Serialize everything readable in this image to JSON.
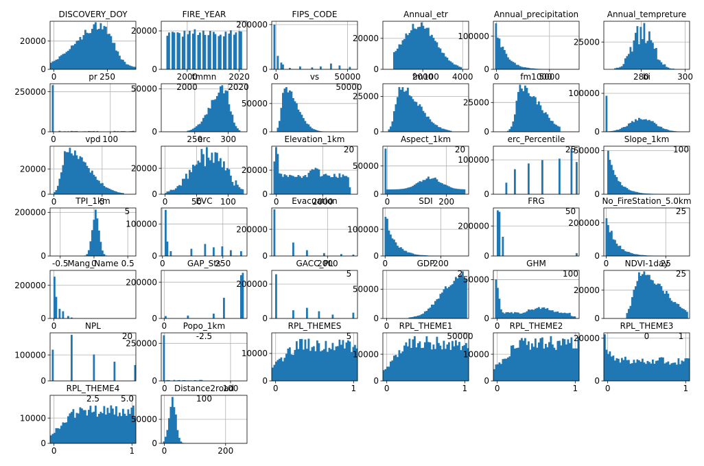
{
  "figure": {
    "background": "#ffffff",
    "bar_color": "#1f77b4",
    "grid_color": "#b0b0b0"
  },
  "chart_data": [
    {
      "type": "bar",
      "title": "DISCOVERY_DOY",
      "xlim": [
        -18,
        383
      ],
      "ylim": [
        0,
        34000
      ],
      "xticks": [
        0,
        250
      ],
      "yticks": [
        0,
        20000
      ],
      "shape": "skew-left",
      "peak": [
        0.6,
        0.13
      ],
      "range": [
        0.0,
        1.0
      ],
      "low": 0.04
    },
    {
      "type": "bar",
      "title": "FIRE_YEAR",
      "xlim": [
        1990,
        2023
      ],
      "ylim": [
        0,
        25000
      ],
      "xticks": [
        2000,
        2020
      ],
      "yticks": [
        0,
        20000
      ],
      "shape": "spiky-uniform",
      "range": [
        0.06,
        0.94
      ],
      "level": 0.8
    },
    {
      "type": "bar",
      "title": "FIPS_CODE",
      "xlim": [
        -3000,
        57000
      ],
      "ylim": [
        0,
        215000
      ],
      "xticks": [
        0,
        50000
      ],
      "yticks": [
        0,
        200000
      ],
      "shape": "sparse",
      "range": [
        0.03,
        0.95
      ],
      "spikes": [
        [
          0.03,
          0.93
        ],
        [
          0.07,
          0.28
        ],
        [
          0.1,
          0.14
        ],
        [
          0.13,
          0.1
        ],
        [
          0.2,
          0.03
        ],
        [
          0.33,
          0.06
        ],
        [
          0.47,
          0.04
        ],
        [
          0.58,
          0.06
        ],
        [
          0.68,
          0.12
        ],
        [
          0.78,
          0.08
        ],
        [
          0.9,
          0.05
        ]
      ]
    },
    {
      "type": "bar",
      "title": "Annual_etr",
      "xlim": [
        0,
        4300
      ],
      "ylim": [
        0,
        31000
      ],
      "xticks": [
        2000,
        4000
      ],
      "yticks": [
        0,
        20000
      ],
      "shape": "bell",
      "peak": [
        0.42,
        0.2
      ],
      "range": [
        0.13,
        0.92
      ]
    },
    {
      "type": "bar",
      "title": "Annual_precipitation",
      "xlim": [
        -300,
        7800
      ],
      "ylim": [
        0,
        145000
      ],
      "xticks": [
        0,
        5000
      ],
      "yticks": [
        0,
        100000
      ],
      "shape": "decay",
      "range": [
        0.03,
        0.95
      ],
      "first": 0.9
    },
    {
      "type": "bar",
      "title": "Annual_tempreture",
      "xlim": [
        263,
        302
      ],
      "ylim": [
        0,
        44000
      ],
      "xticks": [
        280,
        300
      ],
      "yticks": [
        25000
      ],
      "shape": "spiky-bell",
      "peak": [
        0.46,
        0.12
      ],
      "range": [
        0.12,
        0.9
      ]
    },
    {
      "type": "bar",
      "title": "pr",
      "xlim": [
        -6,
        145
      ],
      "ylim": [
        0,
        300000
      ],
      "xticks": [
        0,
        100
      ],
      "yticks": [
        0,
        250000
      ],
      "shape": "single",
      "range": [
        0.02,
        0.98
      ],
      "first": 0.97
    },
    {
      "type": "bar",
      "title": "tmmn",
      "xlim": [
        200,
        328
      ],
      "ylim": [
        0,
        56000
      ],
      "xticks": [
        250,
        300
      ],
      "yticks": [
        0,
        50000
      ],
      "shape": "skew-left",
      "peak": [
        0.73,
        0.07
      ],
      "range": [
        0.3,
        0.92
      ],
      "low": 0.0
    },
    {
      "type": "bar",
      "title": "vs",
      "xlim": [
        -1,
        21
      ],
      "ylim": [
        0,
        85000
      ],
      "xticks": [],
      "yticks": [
        0,
        50000
      ],
      "shape": "skew-right",
      "peak": [
        0.15,
        0.06
      ],
      "range": [
        0.06,
        0.72
      ]
    },
    {
      "type": "bar",
      "title": "fm100",
      "xlim": [
        -2,
        30
      ],
      "ylim": [
        0,
        34000
      ],
      "xticks": [],
      "yticks": [
        0,
        25000
      ],
      "shape": "skew-right",
      "peak": [
        0.2,
        0.09
      ],
      "range": [
        0.06,
        0.8
      ]
    },
    {
      "type": "bar",
      "title": "fm1000",
      "xlim": [
        -2,
        33
      ],
      "ylim": [
        0,
        41000
      ],
      "xticks": [],
      "yticks": [
        0,
        25000
      ],
      "shape": "skew-right",
      "peak": [
        0.32,
        0.09
      ],
      "range": [
        0.1,
        0.78
      ]
    },
    {
      "type": "bar",
      "title": "bi",
      "xlim": [
        -6,
        145
      ],
      "ylim": [
        0,
        125000
      ],
      "xticks": [],
      "yticks": [
        0,
        100000
      ],
      "shape": "spike-bell",
      "peak": [
        0.45,
        0.15
      ],
      "range": [
        0.02,
        0.9
      ],
      "first": 0.75,
      "level": 0.28
    },
    {
      "type": "bar",
      "title": "vpd",
      "xlim": [
        -0.4,
        8.5
      ],
      "ylim": [
        0,
        38000
      ],
      "xticks": [
        0,
        5
      ],
      "yticks": [
        0,
        20000
      ],
      "shape": "skew-right",
      "peak": [
        0.2,
        0.1
      ],
      "range": [
        0.05,
        0.85
      ]
    },
    {
      "type": "bar",
      "title": "erc",
      "xlim": [
        -6,
        130
      ],
      "ylim": [
        0,
        37000
      ],
      "xticks": [
        0,
        50,
        100
      ],
      "yticks": [
        0,
        20000
      ],
      "shape": "spiky-bell",
      "peak": [
        0.55,
        0.2
      ],
      "range": [
        0.04,
        0.95
      ]
    },
    {
      "type": "bar",
      "title": "Elevation_1km",
      "xlim": [
        -200,
        3500
      ],
      "ylim": [
        0,
        40000
      ],
      "xticks": [
        0,
        2000
      ],
      "yticks": [
        0,
        20000
      ],
      "shape": "bimodal",
      "peaks": [
        [
          0.05,
          0.03,
          1.0
        ],
        [
          0.5,
          0.1,
          0.55
        ]
      ],
      "range": [
        0.03,
        0.92
      ],
      "base": 0.4
    },
    {
      "type": "bar",
      "title": "Aspect_1km",
      "xlim": [
        -15,
        275
      ],
      "ylim": [
        0,
        85000
      ],
      "xticks": [
        0,
        200
      ],
      "yticks": [
        0,
        50000
      ],
      "shape": "spike-bell",
      "peak": [
        0.55,
        0.13
      ],
      "range": [
        0.02,
        0.95
      ],
      "first": 0.95,
      "level": 0.25,
      "base": 0.1
    },
    {
      "type": "bar",
      "title": "erc_Percentile",
      "xlim": [
        -5,
        100
      ],
      "ylim": [
        0,
        140000
      ],
      "xticks": [],
      "yticks": [
        0,
        100000
      ],
      "shape": "sparse",
      "range": [
        0.05,
        0.95
      ],
      "spikes": [
        [
          0.15,
          0.24
        ],
        [
          0.25,
          0.52
        ],
        [
          0.4,
          0.64
        ],
        [
          0.58,
          0.71
        ],
        [
          0.76,
          0.74
        ],
        [
          0.9,
          0.95
        ],
        [
          0.97,
          0.67
        ]
      ]
    },
    {
      "type": "bar",
      "title": "Slope_1km",
      "xlim": [
        -3,
        50
      ],
      "ylim": [
        0,
        55000
      ],
      "xticks": [],
      "yticks": [
        0,
        50000
      ],
      "shape": "decay",
      "range": [
        0.05,
        0.85
      ],
      "first": 0.9
    },
    {
      "type": "bar",
      "title": "TPI_1km",
      "xlim": [
        -0.65,
        0.62
      ],
      "ylim": [
        0,
        220000
      ],
      "xticks": [
        -0.5,
        0.0,
        0.5
      ],
      "yticks": [
        0,
        200000
      ],
      "shape": "bell",
      "peak": [
        0.53,
        0.04
      ],
      "range": [
        0.35,
        0.7
      ]
    },
    {
      "type": "bar",
      "title": "EVC",
      "xlim": [
        -5,
        350
      ],
      "ylim": [
        0,
        150000
      ],
      "xticks": [
        0,
        250
      ],
      "yticks": [
        0,
        100000
      ],
      "shape": "sparse",
      "range": [
        0.03,
        0.95
      ],
      "spikes": [
        [
          0.04,
          0.96
        ],
        [
          0.06,
          0.3
        ],
        [
          0.1,
          0.1
        ],
        [
          0.35,
          0.15
        ],
        [
          0.5,
          0.25
        ],
        [
          0.6,
          0.18
        ],
        [
          0.7,
          0.2
        ],
        [
          0.8,
          0.12
        ],
        [
          0.92,
          0.1
        ]
      ]
    },
    {
      "type": "bar",
      "title": "Evacuation",
      "xlim": [
        -50,
        3100
      ],
      "ylim": [
        0,
        360000
      ],
      "xticks": [
        2000
      ],
      "yticks": [
        0,
        200000
      ],
      "shape": "sparse",
      "range": [
        0.02,
        0.95
      ],
      "spikes": [
        [
          0.02,
          0.97
        ],
        [
          0.25,
          0.28
        ],
        [
          0.4,
          0.12
        ],
        [
          0.6,
          0.06
        ],
        [
          0.8,
          0.04
        ],
        [
          0.95,
          0.03
        ]
      ]
    },
    {
      "type": "bar",
      "title": "SDI",
      "xlim": [
        -8,
        300
      ],
      "ylim": [
        0,
        180000
      ],
      "xticks": [
        0,
        200
      ],
      "yticks": [
        0,
        100000
      ],
      "shape": "decay",
      "range": [
        0.02,
        0.95
      ],
      "first": 0.95
    },
    {
      "type": "bar",
      "title": "FRG",
      "xlim": [
        -3,
        120
      ],
      "ylim": [
        0,
        320000
      ],
      "xticks": [],
      "yticks": [
        0,
        200000
      ],
      "shape": "sparse",
      "range": [
        0.02,
        0.98
      ],
      "spikes": [
        [
          0.05,
          0.95
        ],
        [
          0.07,
          0.92
        ],
        [
          0.1,
          0.4
        ],
        [
          0.97,
          0.06
        ]
      ]
    },
    {
      "type": "bar",
      "title": "No_FireStation_5.0km",
      "xlim": [
        -1,
        35
      ],
      "ylim": [
        0,
        290000
      ],
      "xticks": [
        0,
        25
      ],
      "yticks": [
        0,
        200000
      ],
      "shape": "decay",
      "range": [
        0.02,
        0.85
      ],
      "first": 0.9
    },
    {
      "type": "bar",
      "title": "Mang_Name",
      "xlim": [
        -1.5,
        32
      ],
      "ylim": [
        0,
        290000
      ],
      "xticks": [
        0
      ],
      "yticks": [
        0,
        200000
      ],
      "shape": "sparse",
      "range": [
        0.02,
        0.6
      ],
      "spikes": [
        [
          0.04,
          0.87
        ],
        [
          0.06,
          0.45
        ],
        [
          0.1,
          0.2
        ],
        [
          0.14,
          0.15
        ],
        [
          0.2,
          0.05
        ],
        [
          0.25,
          0.02
        ]
      ]
    },
    {
      "type": "bar",
      "title": "GAP_Sts",
      "xlim": [
        -0.15,
        4.2
      ],
      "ylim": [
        0,
        265000
      ],
      "xticks": [
        0.0
      ],
      "yticks": [
        0,
        200000
      ],
      "shape": "sparse",
      "range": [
        0.05,
        0.98
      ],
      "spikes": [
        [
          0.05,
          0.05
        ],
        [
          0.3,
          0.06
        ],
        [
          0.6,
          0.1
        ],
        [
          0.73,
          0.43
        ],
        [
          0.93,
          0.9
        ],
        [
          0.95,
          0.95
        ]
      ]
    },
    {
      "type": "bar",
      "title": "GACC_PL",
      "xlim": [
        -0.3,
        5.2
      ],
      "ylim": [
        0,
        280000
      ],
      "xticks": [],
      "yticks": [
        0,
        200000
      ],
      "shape": "sparse",
      "range": [
        0.02,
        0.98
      ],
      "spikes": [
        [
          0.05,
          0.92
        ],
        [
          0.25,
          0.17
        ],
        [
          0.4,
          0.22
        ],
        [
          0.55,
          0.15
        ],
        [
          0.7,
          0.08
        ],
        [
          0.94,
          0.12
        ]
      ]
    },
    {
      "type": "bar",
      "title": "GDP",
      "xlim": [
        -0.15,
        3.2
      ],
      "ylim": [
        0,
        82000
      ],
      "xticks": [
        0
      ],
      "yticks": [
        0,
        50000
      ],
      "shape": "skew-left",
      "peak": [
        0.92,
        0.1
      ],
      "range": [
        0.3,
        0.98
      ],
      "low": 0.0
    },
    {
      "type": "bar",
      "title": "GHM",
      "xlim": [
        -0.05,
        1.05
      ],
      "ylim": [
        0,
        62000
      ],
      "xticks": [
        0
      ],
      "yticks": [
        0,
        50000
      ],
      "shape": "bimodal",
      "peaks": [
        [
          0.02,
          0.04,
          0.9
        ],
        [
          0.55,
          0.2,
          0.22
        ]
      ],
      "range": [
        0.02,
        0.95
      ],
      "base": 0.12
    },
    {
      "type": "bar",
      "title": "NDVI-1day",
      "xlim": [
        -0.05,
        1.05
      ],
      "ylim": [
        0,
        34000
      ],
      "xticks": [],
      "yticks": [
        0,
        20000
      ],
      "shape": "skew-right",
      "peak": [
        0.42,
        0.12
      ],
      "range": [
        0.27,
        0.98
      ]
    },
    {
      "type": "bar",
      "title": "NPL",
      "xlim": [
        -0.2,
        4.3
      ],
      "ylim": [
        0,
        185000
      ],
      "xticks": [],
      "yticks": [
        0,
        100000
      ],
      "shape": "sparse",
      "range": [
        0.02,
        0.98
      ],
      "spikes": [
        [
          0.03,
          0.65
        ],
        [
          0.25,
          0.96
        ],
        [
          0.5,
          0.55
        ],
        [
          0.75,
          0.4
        ],
        [
          0.98,
          0.33
        ]
      ]
    },
    {
      "type": "bar",
      "title": "Popo_1km",
      "xlim": [
        -5,
        125
      ],
      "ylim": [
        0,
        320000
      ],
      "xticks": [
        0,
        100
      ],
      "yticks": [
        0,
        250000
      ],
      "shape": "single",
      "range": [
        0.02,
        0.5
      ],
      "first": 0.95
    },
    {
      "type": "bar",
      "title": "RPL_THEMES",
      "xlim": [
        -0.05,
        1.05
      ],
      "ylim": [
        0,
        17500
      ],
      "xticks": [
        0,
        1
      ],
      "yticks": [
        0,
        10000
      ],
      "shape": "plateau",
      "range": [
        0.0,
        1.0
      ],
      "level": 0.8,
      "start": 0.3
    },
    {
      "type": "bar",
      "title": "RPL_THEME1",
      "xlim": [
        -0.05,
        1.05
      ],
      "ylim": [
        0,
        18000
      ],
      "xticks": [
        0,
        1
      ],
      "yticks": [
        0,
        10000
      ],
      "shape": "plateau",
      "range": [
        0.0,
        1.0
      ],
      "level": 0.85,
      "start": 0.2
    },
    {
      "type": "bar",
      "title": "RPL_THEME2",
      "xlim": [
        -0.05,
        1.05
      ],
      "ylim": [
        0,
        18000
      ],
      "xticks": [
        0,
        1
      ],
      "yticks": [
        0,
        10000
      ],
      "shape": "plateau",
      "range": [
        0.0,
        1.0
      ],
      "level": 0.85,
      "start": 0.3
    },
    {
      "type": "bar",
      "title": "RPL_THEME3",
      "xlim": [
        -0.05,
        1.05
      ],
      "ylim": [
        0,
        22500
      ],
      "xticks": [
        0,
        1
      ],
      "yticks": [
        0,
        20000
      ],
      "shape": "decay-plateau",
      "range": [
        0.0,
        1.0
      ],
      "level": 0.45,
      "start": 0.95
    },
    {
      "type": "bar",
      "title": "RPL_THEME4",
      "xlim": [
        -0.05,
        1.05
      ],
      "ylim": [
        0,
        19000
      ],
      "xticks": [
        0,
        1
      ],
      "yticks": [
        0,
        10000
      ],
      "shape": "plateau",
      "range": [
        0.0,
        1.0
      ],
      "level": 0.72,
      "start": 0.2
    },
    {
      "type": "bar",
      "title": "Distance2road",
      "xlim": [
        -10,
        270
      ],
      "ylim": [
        0,
        100000
      ],
      "xticks": [
        0,
        200
      ],
      "yticks": [
        0,
        50000
      ],
      "shape": "bell",
      "peak": [
        0.13,
        0.04
      ],
      "range": [
        0.02,
        0.32
      ]
    }
  ],
  "overlay_labels": [
    {
      "text": "2000",
      "panel": 7,
      "at": "top-left"
    },
    {
      "text": "2020",
      "panel": 7,
      "at": "top-right"
    },
    {
      "text": "50000",
      "panel": 8,
      "at": "top-right"
    },
    {
      "text": "20",
      "panel": 14,
      "at": "top-right"
    },
    {
      "text": "20",
      "panel": 15,
      "at": "top-right"
    },
    {
      "text": "25",
      "panel": 16,
      "at": "top-right"
    },
    {
      "text": "100",
      "panel": 17,
      "at": "top-right"
    },
    {
      "text": "5",
      "panel": 18,
      "at": "top-right"
    },
    {
      "text": "50",
      "panel": 22,
      "at": "top-right"
    },
    {
      "text": "25",
      "panel": 23,
      "at": "top-right"
    },
    {
      "text": "5",
      "panel": 26,
      "at": "top-right"
    },
    {
      "text": "2",
      "panel": 27,
      "at": "top-right"
    },
    {
      "text": "100",
      "panel": 28,
      "at": "top-right"
    },
    {
      "text": "25",
      "panel": 29,
      "at": "top-right"
    },
    {
      "text": "20",
      "panel": 30,
      "at": "top-right"
    },
    {
      "text": "-2.5",
      "panel": 31,
      "at": "top-center"
    },
    {
      "text": "5",
      "panel": 32,
      "at": "top-right"
    },
    {
      "text": "50000",
      "panel": 33,
      "at": "top-right"
    },
    {
      "text": "0",
      "panel": 35,
      "at": "top-center"
    },
    {
      "text": "1",
      "panel": 35,
      "at": "top-right"
    },
    {
      "text": "2.5",
      "panel": 36,
      "at": "top-center"
    },
    {
      "text": "5.0",
      "panel": 36,
      "at": "top-right"
    },
    {
      "text": "100",
      "panel": 37,
      "at": "top-center"
    }
  ]
}
